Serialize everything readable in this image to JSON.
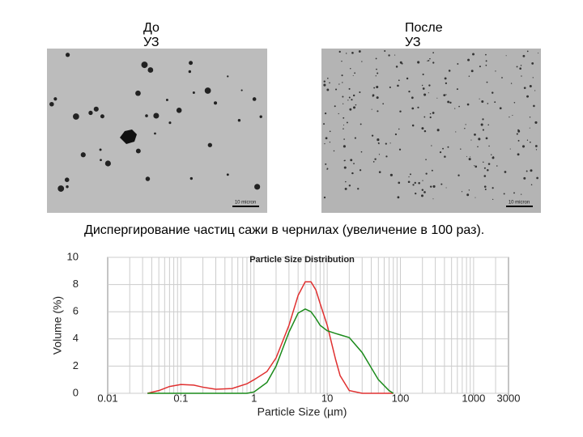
{
  "slide": {
    "before_label": "До УЗ",
    "after_label": "После УЗ",
    "scale_bar": "10 micron",
    "caption": "Диспергирование частиц сажи в чернилах (увеличение в 100 раз)."
  },
  "chart_data": {
    "type": "line",
    "title": "Particle Size Distribution",
    "x_label": "Particle Size (µm)",
    "y_label": "Volume (%)",
    "x_log": true,
    "grid": true,
    "x": [
      0.035,
      0.05,
      0.07,
      0.1,
      0.15,
      0.2,
      0.3,
      0.5,
      0.8,
      1,
      1.5,
      2,
      3,
      4,
      5,
      6,
      7,
      8,
      10,
      13,
      15,
      20,
      30,
      50,
      70,
      80
    ],
    "series": [
      {
        "color": "#e03030",
        "values": [
          0,
          0.2,
          0.5,
          0.65,
          0.6,
          0.45,
          0.3,
          0.35,
          0.7,
          1,
          1.6,
          2.6,
          5,
          7.2,
          8.2,
          8.2,
          7.6,
          6.6,
          5,
          2.5,
          1.3,
          0.2,
          0,
          0,
          0,
          0
        ]
      },
      {
        "color": "#1a8a1a",
        "values": [
          0,
          0,
          0,
          0,
          0,
          0,
          0,
          0,
          0,
          0.1,
          0.8,
          2,
          4.5,
          5.9,
          6.2,
          6.0,
          5.5,
          5.0,
          4.6,
          4.4,
          4.3,
          4.1,
          3.0,
          1.0,
          0.2,
          0
        ]
      }
    ],
    "xlim": [
      0.01,
      3000
    ],
    "xticks": [
      0.01,
      0.1,
      1,
      10,
      100,
      1000,
      3000
    ],
    "ylim": [
      0,
      10
    ],
    "yticks": [
      0,
      2,
      4,
      6,
      8,
      10
    ]
  }
}
